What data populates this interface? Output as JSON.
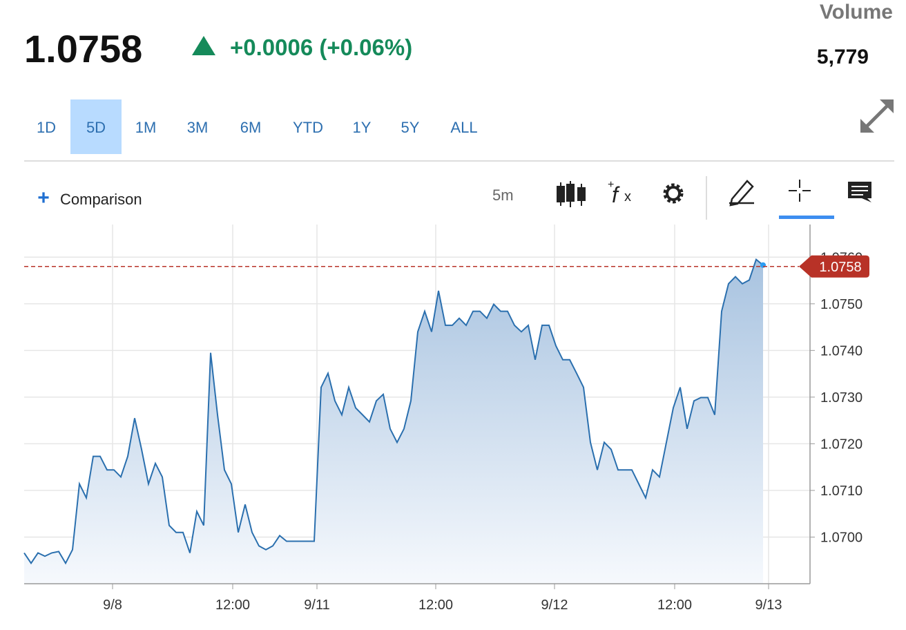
{
  "header": {
    "price": "1.0758",
    "change": "+0.0006 (+0.06%)",
    "volume_label": "Volume",
    "volume": "5,779"
  },
  "ranges": {
    "items": [
      "1D",
      "5D",
      "1M",
      "3M",
      "6M",
      "YTD",
      "1Y",
      "5Y",
      "ALL"
    ],
    "selected": "5D"
  },
  "toolbar": {
    "comparison": "Comparison",
    "interval": "5m"
  },
  "chart_data": {
    "type": "area",
    "color": "#2a6fae",
    "grid": true,
    "values": [
      1.06966,
      1.06944,
      1.06966,
      1.06959,
      1.06966,
      1.06969,
      1.06944,
      1.06973,
      1.07114,
      1.07084,
      1.07173,
      1.07173,
      1.07144,
      1.07144,
      1.07129,
      1.07173,
      1.07255,
      1.07188,
      1.07114,
      1.07158,
      1.07129,
      1.07025,
      1.0701,
      1.0701,
      1.06966,
      1.07055,
      1.07025,
      1.07395,
      1.07262,
      1.07144,
      1.07114,
      1.0701,
      1.0707,
      1.0701,
      1.06981,
      1.06973,
      1.06981,
      1.07003,
      1.06991,
      1.06991,
      1.06991,
      1.06991,
      1.06991,
      1.07321,
      1.07351,
      1.07292,
      1.07262,
      1.07321,
      1.07277,
      1.07262,
      1.07247,
      1.07292,
      1.07306,
      1.07232,
      1.07203,
      1.07232,
      1.07292,
      1.0744,
      1.07484,
      1.0744,
      1.07528,
      1.07454,
      1.07454,
      1.07469,
      1.07454,
      1.07484,
      1.07484,
      1.07469,
      1.07499,
      1.07484,
      1.07484,
      1.07454,
      1.0744,
      1.07454,
      1.0738,
      1.07454,
      1.07454,
      1.0741,
      1.0738,
      1.0738,
      1.07351,
      1.07321,
      1.07203,
      1.07144,
      1.07203,
      1.07188,
      1.07144,
      1.07144,
      1.07144,
      1.07114,
      1.07084,
      1.07144,
      1.07129,
      1.07203,
      1.07277,
      1.07321,
      1.07232,
      1.07292,
      1.07299,
      1.07299,
      1.07262,
      1.07484,
      1.07543,
      1.07558,
      1.07543,
      1.07551,
      1.07595,
      1.07583
    ],
    "xlim": [
      0,
      113.8
    ],
    "xticks": [
      {
        "value": 12.8,
        "label": "9/8"
      },
      {
        "value": 30.2,
        "label": "12:00"
      },
      {
        "value": 42.4,
        "label": "9/11"
      },
      {
        "value": 59.6,
        "label": "12:00"
      },
      {
        "value": 76.8,
        "label": "9/12"
      },
      {
        "value": 94.2,
        "label": "12:00"
      },
      {
        "value": 107.8,
        "label": "9/13"
      }
    ],
    "ylim": [
      1.069,
      1.0767
    ],
    "yticks": [
      {
        "value": 1.07,
        "label": "1.0700"
      },
      {
        "value": 1.071,
        "label": "1.0710"
      },
      {
        "value": 1.072,
        "label": "1.0720"
      },
      {
        "value": 1.073,
        "label": "1.0730"
      },
      {
        "value": 1.074,
        "label": "1.0740"
      },
      {
        "value": 1.075,
        "label": "1.0750"
      },
      {
        "value": 1.076,
        "label": "1.0760"
      }
    ],
    "reference_line": 1.0758,
    "reference_color": "#b83227"
  }
}
